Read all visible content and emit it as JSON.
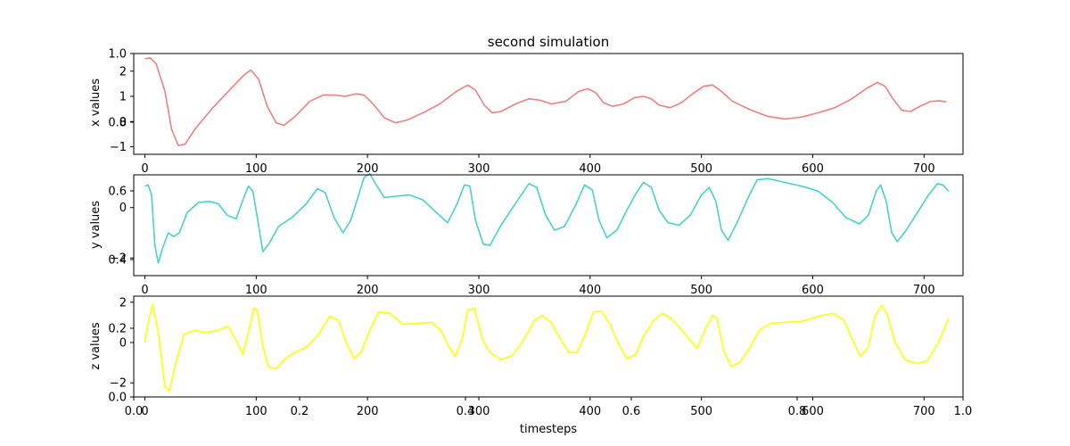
{
  "chart_data": {
    "title": "second simulation",
    "xlabel": "timesteps",
    "figure_axis": {
      "xticks": [
        "0.0",
        "0.2",
        "0.4",
        "0.6",
        "0.8",
        "1.0"
      ],
      "yticks": [
        "0.0",
        "0.2",
        "0.4",
        "0.6",
        "0.8",
        "1.0"
      ]
    },
    "subplots": [
      {
        "type": "line",
        "ylabel": "x values",
        "color": "#f08080",
        "xlim": [
          -10,
          735
        ],
        "ylim": [
          -1.3,
          2.7
        ],
        "xticks": [
          "0",
          "100",
          "200",
          "300",
          "400",
          "500",
          "600",
          "700"
        ],
        "yticks": [
          {
            "label": "2",
            "v": 2
          },
          {
            "label": "1",
            "v": 1
          },
          {
            "label": "0",
            "v": 0
          },
          {
            "label": "−1",
            "v": -1
          }
        ],
        "points": [
          [
            0,
            2.5
          ],
          [
            5,
            2.52
          ],
          [
            10,
            2.3
          ],
          [
            18,
            1.2
          ],
          [
            24,
            -0.3
          ],
          [
            30,
            -0.95
          ],
          [
            36,
            -0.9
          ],
          [
            45,
            -0.3
          ],
          [
            60,
            0.5
          ],
          [
            75,
            1.2
          ],
          [
            88,
            1.8
          ],
          [
            95,
            2.05
          ],
          [
            102,
            1.7
          ],
          [
            110,
            0.6
          ],
          [
            118,
            -0.05
          ],
          [
            125,
            -0.15
          ],
          [
            135,
            0.2
          ],
          [
            148,
            0.8
          ],
          [
            160,
            1.05
          ],
          [
            170,
            1.05
          ],
          [
            180,
            1.0
          ],
          [
            190,
            1.1
          ],
          [
            197,
            1.05
          ],
          [
            205,
            0.7
          ],
          [
            215,
            0.15
          ],
          [
            225,
            -0.05
          ],
          [
            235,
            0.05
          ],
          [
            250,
            0.35
          ],
          [
            265,
            0.7
          ],
          [
            280,
            1.2
          ],
          [
            290,
            1.45
          ],
          [
            297,
            1.25
          ],
          [
            305,
            0.65
          ],
          [
            312,
            0.35
          ],
          [
            320,
            0.4
          ],
          [
            333,
            0.7
          ],
          [
            345,
            0.9
          ],
          [
            355,
            0.85
          ],
          [
            365,
            0.7
          ],
          [
            378,
            0.8
          ],
          [
            390,
            1.2
          ],
          [
            398,
            1.3
          ],
          [
            405,
            1.15
          ],
          [
            412,
            0.75
          ],
          [
            420,
            0.6
          ],
          [
            430,
            0.7
          ],
          [
            440,
            0.95
          ],
          [
            448,
            1.0
          ],
          [
            455,
            0.9
          ],
          [
            462,
            0.65
          ],
          [
            472,
            0.55
          ],
          [
            482,
            0.75
          ],
          [
            492,
            1.1
          ],
          [
            502,
            1.4
          ],
          [
            510,
            1.45
          ],
          [
            518,
            1.2
          ],
          [
            528,
            0.8
          ],
          [
            545,
            0.45
          ],
          [
            560,
            0.2
          ],
          [
            575,
            0.1
          ],
          [
            590,
            0.18
          ],
          [
            605,
            0.35
          ],
          [
            620,
            0.55
          ],
          [
            635,
            0.9
          ],
          [
            648,
            1.3
          ],
          [
            658,
            1.55
          ],
          [
            665,
            1.4
          ],
          [
            672,
            0.9
          ],
          [
            680,
            0.45
          ],
          [
            688,
            0.4
          ],
          [
            696,
            0.6
          ],
          [
            706,
            0.8
          ],
          [
            714,
            0.82
          ],
          [
            720,
            0.78
          ]
        ]
      },
      {
        "type": "line",
        "ylabel": "y values",
        "color": "#48d1cc",
        "xlim": [
          -10,
          735
        ],
        "ylim": [
          -2.7,
          1.3
        ],
        "xticks": [
          "0",
          "100",
          "200",
          "300",
          "400",
          "500",
          "600",
          "700"
        ],
        "yticks": [
          {
            "label": "0",
            "v": 0
          },
          {
            "label": "−2",
            "v": -2
          }
        ],
        "points": [
          [
            0,
            0.85
          ],
          [
            3,
            0.9
          ],
          [
            6,
            0.5
          ],
          [
            9,
            -1.5
          ],
          [
            12,
            -2.2
          ],
          [
            16,
            -1.6
          ],
          [
            21,
            -1.0
          ],
          [
            26,
            -1.15
          ],
          [
            31,
            -1.0
          ],
          [
            38,
            -0.2
          ],
          [
            48,
            0.2
          ],
          [
            58,
            0.25
          ],
          [
            66,
            0.15
          ],
          [
            74,
            -0.3
          ],
          [
            82,
            -0.45
          ],
          [
            88,
            0.3
          ],
          [
            93,
            0.85
          ],
          [
            97,
            0.65
          ],
          [
            101,
            -0.4
          ],
          [
            106,
            -1.75
          ],
          [
            112,
            -1.4
          ],
          [
            120,
            -0.75
          ],
          [
            132,
            -0.4
          ],
          [
            145,
            0.15
          ],
          [
            155,
            0.75
          ],
          [
            162,
            0.6
          ],
          [
            170,
            -0.4
          ],
          [
            178,
            -1.0
          ],
          [
            185,
            -0.5
          ],
          [
            192,
            0.5
          ],
          [
            197,
            1.2
          ],
          [
            202,
            1.35
          ],
          [
            208,
            0.9
          ],
          [
            215,
            0.4
          ],
          [
            225,
            0.45
          ],
          [
            238,
            0.5
          ],
          [
            250,
            0.3
          ],
          [
            262,
            -0.2
          ],
          [
            272,
            -0.6
          ],
          [
            280,
            0.1
          ],
          [
            287,
            0.9
          ],
          [
            292,
            0.85
          ],
          [
            297,
            -0.5
          ],
          [
            304,
            -1.45
          ],
          [
            310,
            -1.5
          ],
          [
            320,
            -0.7
          ],
          [
            332,
            0.1
          ],
          [
            345,
            0.95
          ],
          [
            352,
            0.8
          ],
          [
            360,
            -0.3
          ],
          [
            368,
            -0.9
          ],
          [
            377,
            -0.75
          ],
          [
            387,
            0.1
          ],
          [
            395,
            0.9
          ],
          [
            402,
            0.7
          ],
          [
            408,
            -0.5
          ],
          [
            415,
            -1.2
          ],
          [
            424,
            -0.9
          ],
          [
            433,
            -0.1
          ],
          [
            441,
            0.55
          ],
          [
            448,
            1.0
          ],
          [
            455,
            0.8
          ],
          [
            462,
            -0.1
          ],
          [
            470,
            -0.6
          ],
          [
            480,
            -0.7
          ],
          [
            490,
            -0.3
          ],
          [
            500,
            0.5
          ],
          [
            507,
            0.8
          ],
          [
            513,
            0.25
          ],
          [
            518,
            -0.9
          ],
          [
            524,
            -1.3
          ],
          [
            532,
            -0.6
          ],
          [
            542,
            0.4
          ],
          [
            550,
            1.1
          ],
          [
            560,
            1.15
          ],
          [
            575,
            1.0
          ],
          [
            590,
            0.85
          ],
          [
            605,
            0.65
          ],
          [
            618,
            0.2
          ],
          [
            630,
            -0.4
          ],
          [
            642,
            -0.65
          ],
          [
            650,
            -0.3
          ],
          [
            657,
            0.65
          ],
          [
            661,
            0.9
          ],
          [
            666,
            0.25
          ],
          [
            671,
            -1.0
          ],
          [
            676,
            -1.35
          ],
          [
            684,
            -0.9
          ],
          [
            694,
            -0.2
          ],
          [
            704,
            0.5
          ],
          [
            712,
            0.95
          ],
          [
            717,
            0.9
          ],
          [
            722,
            0.65
          ]
        ]
      },
      {
        "type": "line",
        "ylabel": "z values",
        "color": "#ffff00",
        "xlim": [
          -10,
          735
        ],
        "ylim": [
          -2.7,
          2.3
        ],
        "xticks": [
          "0",
          "100",
          "200",
          "300",
          "400",
          "500",
          "600",
          "700"
        ],
        "yticks": [
          {
            "label": "2",
            "v": 2
          },
          {
            "label": "0",
            "v": 0
          },
          {
            "label": "−2",
            "v": -2
          }
        ],
        "points": [
          [
            0,
            0
          ],
          [
            3,
            1.0
          ],
          [
            7,
            1.9
          ],
          [
            12,
            0.5
          ],
          [
            18,
            -2.2
          ],
          [
            22,
            -2.4
          ],
          [
            28,
            -1.0
          ],
          [
            35,
            0.4
          ],
          [
            45,
            0.6
          ],
          [
            55,
            0.5
          ],
          [
            65,
            0.6
          ],
          [
            75,
            0.8
          ],
          [
            82,
            0.1
          ],
          [
            88,
            -0.6
          ],
          [
            93,
            0.5
          ],
          [
            98,
            1.7
          ],
          [
            101,
            1.6
          ],
          [
            106,
            -0.2
          ],
          [
            111,
            -1.2
          ],
          [
            118,
            -1.3
          ],
          [
            126,
            -0.8
          ],
          [
            136,
            -0.45
          ],
          [
            146,
            -0.2
          ],
          [
            156,
            0.4
          ],
          [
            166,
            1.3
          ],
          [
            174,
            1.1
          ],
          [
            180,
            0.1
          ],
          [
            188,
            -0.8
          ],
          [
            194,
            -0.5
          ],
          [
            202,
            0.6
          ],
          [
            210,
            1.5
          ],
          [
            220,
            1.45
          ],
          [
            232,
            0.9
          ],
          [
            245,
            0.95
          ],
          [
            258,
            1.0
          ],
          [
            266,
            0.6
          ],
          [
            273,
            -0.2
          ],
          [
            279,
            -0.7
          ],
          [
            285,
            0.2
          ],
          [
            290,
            1.6
          ],
          [
            296,
            1.7
          ],
          [
            303,
            0.2
          ],
          [
            310,
            -0.5
          ],
          [
            320,
            -0.85
          ],
          [
            330,
            -0.65
          ],
          [
            340,
            0.1
          ],
          [
            350,
            1.1
          ],
          [
            357,
            1.35
          ],
          [
            365,
            1.0
          ],
          [
            373,
            0.2
          ],
          [
            381,
            -0.5
          ],
          [
            388,
            -0.5
          ],
          [
            395,
            0.3
          ],
          [
            403,
            1.5
          ],
          [
            410,
            1.55
          ],
          [
            418,
            0.9
          ],
          [
            425,
            0.0
          ],
          [
            433,
            -0.8
          ],
          [
            441,
            -0.6
          ],
          [
            448,
            0.3
          ],
          [
            457,
            1.1
          ],
          [
            465,
            1.45
          ],
          [
            473,
            1.2
          ],
          [
            481,
            0.7
          ],
          [
            490,
            0.1
          ],
          [
            496,
            -0.3
          ],
          [
            503,
            0.6
          ],
          [
            510,
            1.35
          ],
          [
            514,
            1.2
          ],
          [
            520,
            -0.4
          ],
          [
            527,
            -1.2
          ],
          [
            534,
            -1.0
          ],
          [
            542,
            -0.4
          ],
          [
            552,
            0.6
          ],
          [
            562,
            0.95
          ],
          [
            575,
            1.0
          ],
          [
            590,
            1.05
          ],
          [
            605,
            1.3
          ],
          [
            618,
            1.45
          ],
          [
            628,
            1.1
          ],
          [
            636,
            0.1
          ],
          [
            643,
            -0.7
          ],
          [
            650,
            -0.2
          ],
          [
            656,
            1.3
          ],
          [
            662,
            1.85
          ],
          [
            667,
            1.4
          ],
          [
            674,
            0.0
          ],
          [
            683,
            -0.85
          ],
          [
            694,
            -1.05
          ],
          [
            703,
            -0.9
          ],
          [
            713,
            0.0
          ],
          [
            722,
            1.2
          ]
        ]
      }
    ]
  }
}
